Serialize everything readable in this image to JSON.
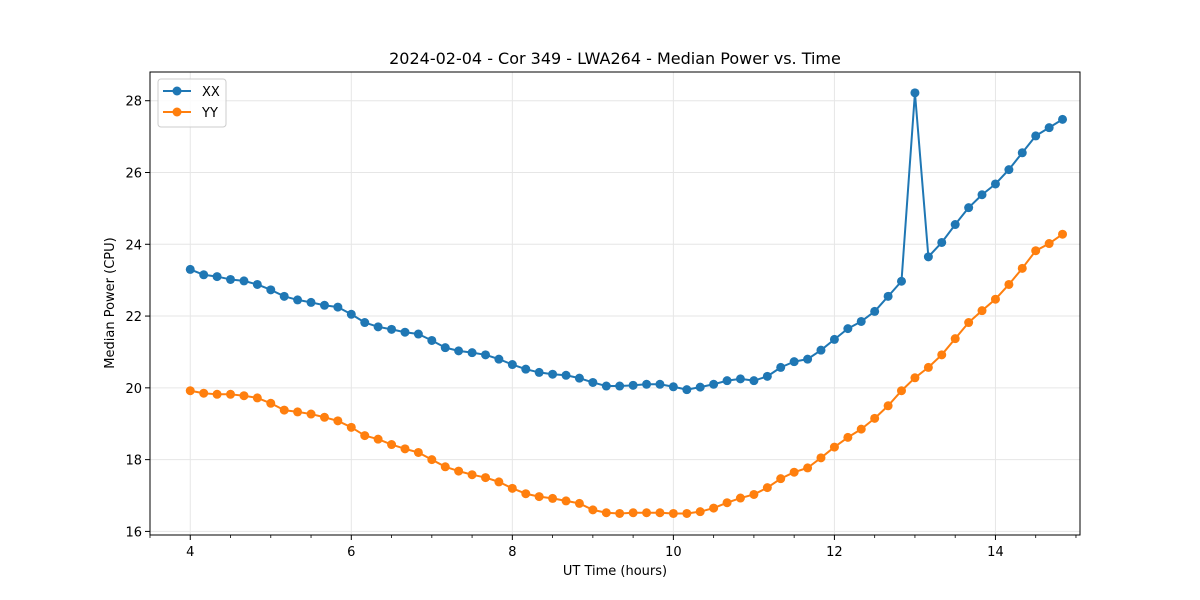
{
  "chart_data": {
    "type": "line",
    "title": "2024-02-04 - Cor 349 - LWA264 - Median Power vs. Time",
    "xlabel": "UT Time (hours)",
    "ylabel": "Median Power (CPU)",
    "xlim": [
      3.5,
      15.05
    ],
    "ylim": [
      15.9,
      28.8
    ],
    "xticks": [
      4,
      6,
      8,
      10,
      12,
      14
    ],
    "yticks": [
      16,
      18,
      20,
      22,
      24,
      26,
      28
    ],
    "grid": true,
    "legend_position": "top-left",
    "x": [
      4.0,
      4.167,
      4.333,
      4.5,
      4.667,
      4.833,
      5.0,
      5.167,
      5.333,
      5.5,
      5.667,
      5.833,
      6.0,
      6.167,
      6.333,
      6.5,
      6.667,
      6.833,
      7.0,
      7.167,
      7.333,
      7.5,
      7.667,
      7.833,
      8.0,
      8.167,
      8.333,
      8.5,
      8.667,
      8.833,
      9.0,
      9.167,
      9.333,
      9.5,
      9.667,
      9.833,
      10.0,
      10.167,
      10.333,
      10.5,
      10.667,
      10.833,
      11.0,
      11.167,
      11.333,
      11.5,
      11.667,
      11.833,
      12.0,
      12.167,
      12.333,
      12.5,
      12.667,
      12.833,
      13.0,
      13.167,
      13.333,
      13.5,
      13.667,
      13.833,
      14.0,
      14.167,
      14.333,
      14.5,
      14.667,
      14.833
    ],
    "series": [
      {
        "name": "XX",
        "color": "#1f77b4",
        "values": [
          23.3,
          23.15,
          23.1,
          23.02,
          22.98,
          22.88,
          22.73,
          22.55,
          22.45,
          22.38,
          22.3,
          22.25,
          22.05,
          21.82,
          21.7,
          21.63,
          21.55,
          21.5,
          21.32,
          21.12,
          21.03,
          20.98,
          20.92,
          20.8,
          20.65,
          20.52,
          20.43,
          20.38,
          20.35,
          20.27,
          20.15,
          20.05,
          20.05,
          20.07,
          20.1,
          20.1,
          20.03,
          19.95,
          20.02,
          20.1,
          20.2,
          20.25,
          20.2,
          20.32,
          20.57,
          20.73,
          20.8,
          21.05,
          21.35,
          21.65,
          21.85,
          22.13,
          22.55,
          22.97,
          28.22,
          23.65,
          24.05,
          24.55,
          25.02,
          25.38,
          25.68,
          26.08,
          26.55,
          27.02,
          27.25,
          27.48
        ]
      },
      {
        "name": "YY",
        "color": "#ff7f0e",
        "values": [
          19.92,
          19.85,
          19.82,
          19.82,
          19.78,
          19.72,
          19.57,
          19.38,
          19.33,
          19.27,
          19.18,
          19.08,
          18.9,
          18.67,
          18.57,
          18.42,
          18.3,
          18.2,
          18.0,
          17.8,
          17.68,
          17.58,
          17.5,
          17.38,
          17.2,
          17.05,
          16.97,
          16.92,
          16.85,
          16.78,
          16.6,
          16.52,
          16.5,
          16.52,
          16.52,
          16.52,
          16.5,
          16.5,
          16.55,
          16.65,
          16.8,
          16.93,
          17.03,
          17.22,
          17.47,
          17.65,
          17.77,
          18.05,
          18.35,
          18.62,
          18.85,
          19.15,
          19.5,
          19.92,
          20.28,
          20.57,
          20.92,
          21.37,
          21.82,
          22.15,
          22.47,
          22.88,
          23.33,
          23.82,
          24.02,
          24.28
        ]
      }
    ]
  }
}
